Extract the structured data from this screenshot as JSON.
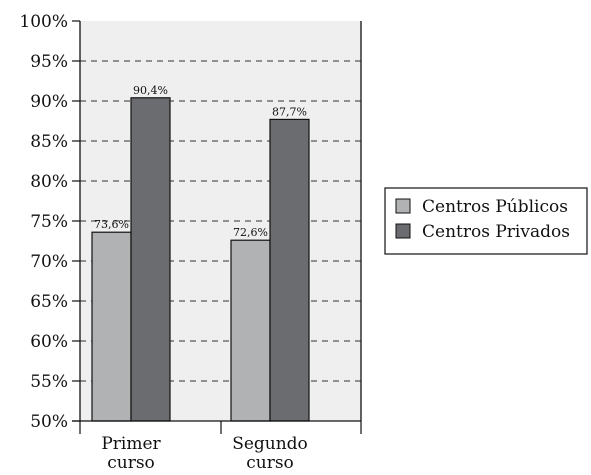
{
  "chart_data": {
    "type": "bar",
    "categories": [
      [
        "Primer",
        "curso"
      ],
      [
        "Segundo",
        "curso"
      ]
    ],
    "series": [
      {
        "name": "Centros Públicos",
        "values": [
          73.6,
          72.6
        ],
        "labels": [
          "73,6%",
          "72,6%"
        ],
        "color": "#b1b2b4"
      },
      {
        "name": "Centros Privados",
        "values": [
          90.4,
          87.7
        ],
        "labels": [
          "90,4%",
          "87,7%"
        ],
        "color": "#6b6c70"
      }
    ],
    "ylim": [
      50,
      100
    ],
    "yticks": [
      "50%",
      "55%",
      "60%",
      "65%",
      "70%",
      "75%",
      "80%",
      "85%",
      "90%",
      "95%",
      "100%"
    ],
    "grid": true,
    "legend": "right",
    "plot_background": "#efeff0"
  }
}
